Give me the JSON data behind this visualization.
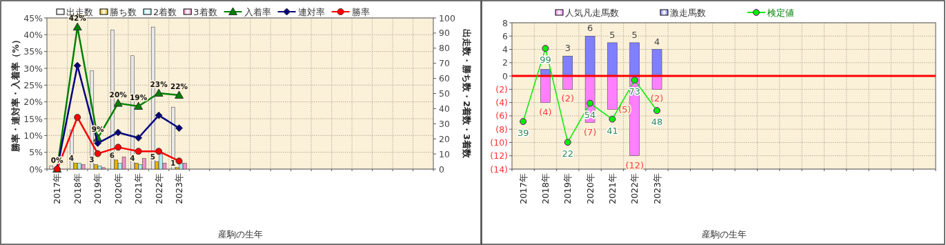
{
  "chart_data": [
    {
      "type": "bar",
      "xlabel": "産駒の生年",
      "ylabel": "勝率・連対率・入着率（%）",
      "y2label": "出走数・勝ち数・2着数・3着数",
      "categories": [
        "2017年",
        "2018年",
        "2019年",
        "2020年",
        "2021年",
        "2022年",
        "2023年",
        null,
        null,
        null,
        null,
        null,
        null,
        null,
        null,
        null,
        null,
        null,
        null
      ],
      "ylim": [
        0,
        45
      ],
      "yticks": [
        {
          "value": 0,
          "label": "0%"
        },
        {
          "value": 5,
          "label": "5%"
        },
        {
          "value": 10,
          "label": "10%"
        },
        {
          "value": 15,
          "label": "15%"
        },
        {
          "value": 20,
          "label": "20%"
        },
        {
          "value": 25,
          "label": "25%"
        },
        {
          "value": 30,
          "label": "30%"
        },
        {
          "value": 35,
          "label": "35%"
        },
        {
          "value": 40,
          "label": "40%"
        },
        {
          "value": 45,
          "label": "45%"
        }
      ],
      "y2lim": [
        0,
        100
      ],
      "y2ticks": [
        0,
        10,
        20,
        30,
        40,
        50,
        60,
        70,
        80,
        90,
        100
      ],
      "grid": true,
      "legend": "top",
      "series": [
        {
          "name": "出走数",
          "axis": "y2",
          "color": "#e8e8e8",
          "values": [
            2,
            26,
            65,
            92,
            75,
            94,
            41,
            null,
            null,
            null,
            null,
            null,
            null,
            null,
            null,
            null,
            null,
            null,
            null
          ]
        },
        {
          "name": "勝ち数",
          "axis": "y2",
          "color": "#e6b400",
          "values": [
            0,
            4,
            3,
            6,
            4,
            5,
            1,
            null,
            null,
            null,
            null,
            null,
            null,
            null,
            null,
            null,
            null,
            null,
            null
          ],
          "value_labels": [
            null,
            "4",
            "3",
            "6",
            "4",
            "5",
            "1",
            null,
            null,
            null,
            null,
            null,
            null,
            null,
            null,
            null,
            null,
            null,
            null
          ]
        },
        {
          "name": "2着数",
          "axis": "y2",
          "color": "#a8eef0",
          "values": [
            0,
            4,
            2,
            4,
            3,
            10,
            4,
            null,
            null,
            null,
            null,
            null,
            null,
            null,
            null,
            null,
            null,
            null,
            null
          ]
        },
        {
          "name": "3着数",
          "axis": "y2",
          "color": "#f090c8",
          "values": [
            0,
            3,
            1,
            8,
            7,
            4,
            4,
            null,
            null,
            null,
            null,
            null,
            null,
            null,
            null,
            null,
            null,
            null,
            null
          ]
        },
        {
          "name": "入着率",
          "type": "line",
          "marker": "triangle",
          "color": "#008000",
          "values": [
            0,
            42.3,
            9.2,
            19.6,
            18.7,
            22.6,
            22.0,
            null,
            null,
            null,
            null,
            null,
            null,
            null,
            null,
            null,
            null,
            null,
            null
          ],
          "value_labels": [
            "0%",
            "42%",
            "9%",
            "20%",
            "19%",
            "23%",
            "22%",
            null,
            null,
            null,
            null,
            null,
            null,
            null,
            null,
            null,
            null,
            null,
            null
          ]
        },
        {
          "name": "連対率",
          "type": "line",
          "marker": "diamond",
          "color": "#000080",
          "values": [
            0,
            30.8,
            7.7,
            10.9,
            9.3,
            16.0,
            12.2,
            null,
            null,
            null,
            null,
            null,
            null,
            null,
            null,
            null,
            null,
            null,
            null
          ]
        },
        {
          "name": "勝率",
          "type": "line",
          "marker": "circle",
          "color": "#ff0000",
          "values": [
            0,
            15.4,
            4.6,
            6.5,
            5.3,
            5.3,
            2.4,
            null,
            null,
            null,
            null,
            null,
            null,
            null,
            null,
            null,
            null,
            null,
            null
          ]
        }
      ]
    },
    {
      "type": "bar",
      "stacked": true,
      "xlabel": "産駒の生年",
      "categories": [
        "2017年",
        "2018年",
        "2019年",
        "2020年",
        "2021年",
        "2022年",
        "2023年",
        null,
        null,
        null,
        null,
        null,
        null,
        null,
        null,
        null,
        null,
        null,
        null
      ],
      "ylim": [
        -14,
        8
      ],
      "yticks": [
        {
          "value": -14,
          "label": "(14)"
        },
        {
          "value": -12,
          "label": "(12)"
        },
        {
          "value": -10,
          "label": "(10)"
        },
        {
          "value": -8,
          "label": "(8)"
        },
        {
          "value": -6,
          "label": "(6)"
        },
        {
          "value": -4,
          "label": "(4)"
        },
        {
          "value": -2,
          "label": "(2)"
        },
        0,
        2,
        4,
        6,
        8
      ],
      "y2lim": [
        0,
        120
      ],
      "tick_labels": [
        "x",
        "y"
      ],
      "grid": true,
      "legend": "top",
      "ref_lines": [
        {
          "axis": "y",
          "value": 0,
          "color": "#ff0000"
        }
      ],
      "series": [
        {
          "name": "人気凡走馬数",
          "color": "#ff80ff",
          "values": [
            null,
            -4,
            -2,
            -7,
            -5,
            -12,
            -2,
            null,
            null,
            null,
            null,
            null,
            null,
            null,
            null,
            null,
            null,
            null,
            null
          ],
          "value_labels": [
            null,
            "(4)",
            "(2)",
            "(7)",
            "(5)",
            "(12)",
            "(2)",
            null,
            null,
            null,
            null,
            null,
            null,
            null,
            null,
            null,
            null,
            null,
            null
          ]
        },
        {
          "name": "激走馬数",
          "color": "#7f7fff",
          "values": [
            null,
            1,
            3,
            6,
            5,
            5,
            4,
            null,
            null,
            null,
            null,
            null,
            null,
            null,
            null,
            null,
            null,
            null,
            null
          ],
          "value_labels": [
            null,
            null,
            "3",
            "6",
            "5",
            "5",
            "4",
            null,
            null,
            null,
            null,
            null,
            null,
            null,
            null,
            null,
            null,
            null,
            null
          ]
        },
        {
          "name": "検定値",
          "type": "line",
          "axis": "y2",
          "marker": "circle",
          "color": "#00ee00",
          "values": [
            39,
            99,
            22,
            54,
            41,
            73,
            48,
            null,
            null,
            null,
            null,
            null,
            null,
            null,
            null,
            null,
            null,
            null,
            null
          ],
          "value_labels": [
            "39",
            "99",
            "22",
            "54",
            "41",
            "73",
            "48",
            null,
            null,
            null,
            null,
            null,
            null,
            null,
            null,
            null,
            null,
            null,
            null
          ]
        }
      ]
    }
  ]
}
